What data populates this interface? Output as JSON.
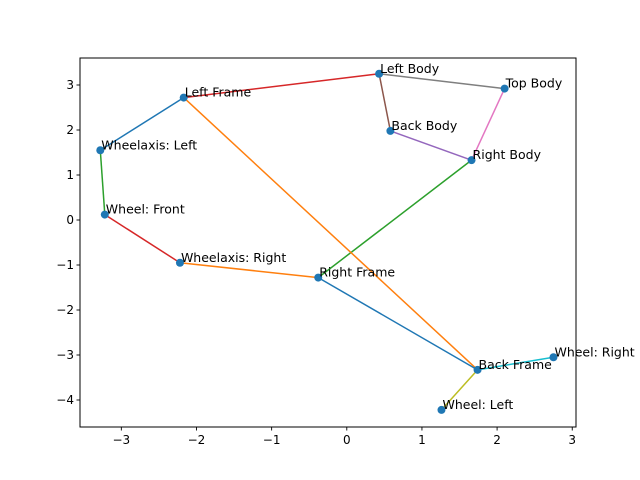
{
  "chart_data": {
    "type": "scatter",
    "title": "",
    "xlabel": "",
    "ylabel": "",
    "xlim": [
      -3.55,
      3.05
    ],
    "ylim": [
      -4.6,
      3.6
    ],
    "xticks": [
      -3,
      -2,
      -1,
      0,
      1,
      2,
      3
    ],
    "yticks": [
      -4,
      -3,
      -2,
      -1,
      0,
      1,
      2,
      3
    ],
    "grid": false,
    "legend": "none",
    "point_color": "#1f77b4",
    "points": [
      {
        "label": "Left Body",
        "x": 0.43,
        "y": 3.25
      },
      {
        "label": "Top Body",
        "x": 2.1,
        "y": 2.92
      },
      {
        "label": "Left Frame",
        "x": -2.17,
        "y": 2.72
      },
      {
        "label": "Back Body",
        "x": 0.58,
        "y": 1.98
      },
      {
        "label": "Wheelaxis: Left",
        "x": -3.28,
        "y": 1.55
      },
      {
        "label": "Right Body",
        "x": 1.66,
        "y": 1.33
      },
      {
        "label": "Wheel: Front",
        "x": -3.22,
        "y": 0.12
      },
      {
        "label": "Wheelaxis: Right",
        "x": -2.22,
        "y": -0.95
      },
      {
        "label": "Right Frame",
        "x": -0.38,
        "y": -1.28
      },
      {
        "label": "Wheel: Right",
        "x": 2.75,
        "y": -3.05
      },
      {
        "label": "Back Frame",
        "x": 1.74,
        "y": -3.33
      },
      {
        "label": "Wheel: Left",
        "x": 1.26,
        "y": -4.22
      }
    ],
    "edges": [
      {
        "from": "Left Body",
        "to": "Top Body",
        "color": "#7f7f7f"
      },
      {
        "from": "Left Body",
        "to": "Back Body",
        "color": "#8c564b"
      },
      {
        "from": "Left Body",
        "to": "Left Frame",
        "color": "#d62728"
      },
      {
        "from": "Top Body",
        "to": "Right Body",
        "color": "#e377c2"
      },
      {
        "from": "Back Body",
        "to": "Right Body",
        "color": "#9467bd"
      },
      {
        "from": "Right Body",
        "to": "Right Frame",
        "color": "#2ca02c"
      },
      {
        "from": "Left Frame",
        "to": "Wheelaxis: Left",
        "color": "#1f77b4"
      },
      {
        "from": "Left Frame",
        "to": "Back Frame",
        "color": "#ff7f0e"
      },
      {
        "from": "Wheelaxis: Left",
        "to": "Wheel: Front",
        "color": "#2ca02c"
      },
      {
        "from": "Wheel: Front",
        "to": "Wheelaxis: Right",
        "color": "#d62728"
      },
      {
        "from": "Wheelaxis: Right",
        "to": "Right Frame",
        "color": "#ff7f0e"
      },
      {
        "from": "Right Frame",
        "to": "Back Frame",
        "color": "#1f77b4"
      },
      {
        "from": "Back Frame",
        "to": "Wheel: Right",
        "color": "#17becf"
      },
      {
        "from": "Back Frame",
        "to": "Wheel: Left",
        "color": "#bcbd22"
      }
    ]
  }
}
